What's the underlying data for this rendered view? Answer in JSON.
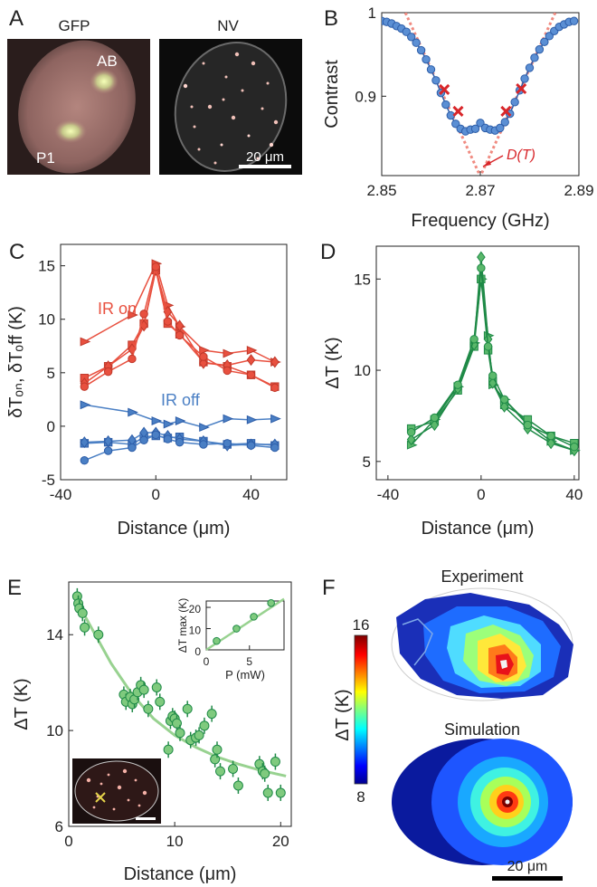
{
  "panels": {
    "A": {
      "letter": "A",
      "left_title": "GFP",
      "right_title": "NV",
      "label_ab": "AB",
      "label_p1": "P1",
      "scalebar_label": "20 μm"
    },
    "B": {
      "letter": "B",
      "annotation": "D(T)"
    },
    "C": {
      "letter": "C",
      "label_on": "IR on",
      "label_off": "IR off"
    },
    "D": {
      "letter": "D"
    },
    "E": {
      "letter": "E"
    },
    "F": {
      "letter": "F",
      "title_exp": "Experiment",
      "title_sim": "Simulation",
      "colorbar_label": "ΔT (K)",
      "colorbar_max": "16",
      "colorbar_min": "8",
      "scalebar_label": "20 μm"
    }
  },
  "colors": {
    "blue": "#4a7fc4",
    "red": "#e8503f",
    "green": "#1f8a47",
    "lightgreen": "#5bb86b",
    "fit_red": "#f08a80",
    "marker_red": "#d8262a"
  },
  "chart_data": [
    {
      "id": "B",
      "type": "line",
      "xlabel": "Frequency (GHz)",
      "ylabel": "Contrast",
      "xlim": [
        2.85,
        2.89
      ],
      "ylim": [
        0.805,
        1.0
      ],
      "xticks": [
        2.85,
        2.87,
        2.89
      ],
      "xticklabels": [
        "2.85",
        "2.87",
        "2.89"
      ],
      "yticks": [
        0.9,
        1.0
      ],
      "yticklabels": [
        "0.9",
        "1"
      ],
      "series": [
        {
          "x": [
            2.85,
            2.851,
            2.852,
            2.853,
            2.854,
            2.855,
            2.856,
            2.857,
            2.858,
            2.859,
            2.86,
            2.861,
            2.862,
            2.863,
            2.864,
            2.865,
            2.866,
            2.867,
            2.868,
            2.869,
            2.87,
            2.871,
            2.872,
            2.873,
            2.874,
            2.875,
            2.876,
            2.877,
            2.878,
            2.879,
            2.88,
            2.881,
            2.882,
            2.883,
            2.884,
            2.885,
            2.886,
            2.887,
            2.888,
            2.889
          ],
          "y": [
            0.99,
            0.989,
            0.987,
            0.984,
            0.981,
            0.977,
            0.971,
            0.964,
            0.955,
            0.944,
            0.932,
            0.919,
            0.904,
            0.89,
            0.877,
            0.867,
            0.861,
            0.858,
            0.86,
            0.861,
            0.868,
            0.862,
            0.86,
            0.859,
            0.862,
            0.869,
            0.879,
            0.893,
            0.907,
            0.921,
            0.934,
            0.946,
            0.956,
            0.965,
            0.972,
            0.978,
            0.983,
            0.986,
            0.989,
            0.99
          ]
        }
      ],
      "fit_lines": [
        {
          "x": [
            2.8548,
            2.8697
          ],
          "y": [
            1.0,
            0.808
          ]
        },
        {
          "x": [
            2.8703,
            2.8852
          ],
          "y": [
            0.808,
            1.0
          ]
        }
      ],
      "crosses": {
        "x": [
          2.8627,
          2.8655,
          2.8752,
          2.8783
        ],
        "y": [
          0.908,
          0.882,
          0.882,
          0.909
        ]
      }
    },
    {
      "id": "C",
      "type": "line",
      "xlabel": "Distance (μm)",
      "ylabel": "δTₒₙ, δTₒff (K)",
      "xlim": [
        -40,
        55
      ],
      "ylim": [
        -5,
        17
      ],
      "xticks": [
        -40,
        0,
        40
      ],
      "xticklabels": [
        "-40",
        "0",
        "40"
      ],
      "yticks": [
        -5,
        0,
        5,
        10,
        15
      ],
      "yticklabels": [
        "-5",
        "0",
        "5",
        "10",
        "15"
      ],
      "series": [
        {
          "name": "IR on",
          "marker": "triangle",
          "x": [
            -30,
            -10,
            0,
            5,
            10,
            20,
            30,
            40,
            50
          ],
          "y": [
            7.9,
            10.4,
            15.2,
            11.3,
            9.3,
            7.1,
            6.8,
            7.1,
            6.0
          ]
        },
        {
          "name": "IR on",
          "marker": "square",
          "x": [
            -30,
            -20,
            -10,
            -5,
            0,
            5,
            10,
            20,
            30,
            40,
            50
          ],
          "y": [
            4.5,
            5.6,
            7.6,
            9.6,
            14.6,
            9.6,
            8.6,
            6.0,
            5.6,
            4.8,
            3.7
          ]
        },
        {
          "name": "IR on",
          "marker": "diamond",
          "x": [
            -30,
            -20,
            -10,
            -5,
            0,
            5,
            10,
            20,
            30,
            40,
            50
          ],
          "y": [
            4.0,
            5.6,
            7.2,
            9.4,
            14.6,
            10.7,
            9.4,
            5.9,
            5.7,
            6.2,
            6.0
          ]
        },
        {
          "name": "IR on",
          "marker": "circle",
          "x": [
            -30,
            -20,
            -10,
            -5,
            0,
            5,
            10,
            20,
            30,
            40,
            50
          ],
          "y": [
            3.7,
            5.1,
            6.3,
            10.5,
            14.9,
            9.8,
            8.5,
            6.5,
            5.2,
            4.8,
            3.6
          ]
        },
        {
          "name": "IR off",
          "marker": "triangle",
          "x": [
            -30,
            -10,
            0,
            5,
            10,
            20,
            30,
            40,
            50
          ],
          "y": [
            2.0,
            1.3,
            0.5,
            0.2,
            0.5,
            -0.1,
            0.7,
            0.6,
            0.7
          ]
        },
        {
          "name": "IR off",
          "marker": "square",
          "x": [
            -30,
            -20,
            -10,
            -5,
            0,
            5,
            10,
            20,
            30,
            40,
            50
          ],
          "y": [
            -1.6,
            -1.5,
            -1.7,
            -1.0,
            -0.9,
            -1.1,
            -1.0,
            -1.4,
            -1.7,
            -1.6,
            -1.8
          ]
        },
        {
          "name": "IR off",
          "marker": "diamond",
          "x": [
            -30,
            -20,
            -10,
            -5,
            0,
            5,
            10,
            20,
            30,
            40,
            50
          ],
          "y": [
            -1.5,
            -1.4,
            -1.3,
            -0.6,
            -0.6,
            -0.9,
            -1.2,
            -1.4,
            -1.8,
            -1.7,
            -1.7
          ]
        },
        {
          "name": "IR off",
          "marker": "circle",
          "x": [
            -30,
            -20,
            -10,
            -5,
            0,
            5,
            10,
            20,
            30,
            40,
            50
          ],
          "y": [
            -3.2,
            -2.3,
            -2.0,
            -1.3,
            -0.8,
            -1.2,
            -1.5,
            -1.7,
            -1.6,
            -1.8,
            -2.0
          ]
        }
      ]
    },
    {
      "id": "D",
      "type": "line",
      "xlabel": "Distance (μm)",
      "ylabel": "ΔT (K)",
      "xlim": [
        -45,
        42
      ],
      "ylim": [
        4,
        16.8
      ],
      "xticks": [
        -40,
        0,
        40
      ],
      "xticklabels": [
        "-40",
        "0",
        "40"
      ],
      "yticks": [
        5,
        10,
        15
      ],
      "yticklabels": [
        "5",
        "10",
        "15"
      ],
      "series": [
        {
          "marker": "triangle",
          "x": [
            -30,
            -20,
            -10,
            -3,
            0,
            3,
            5,
            10,
            20,
            30,
            40
          ],
          "y": [
            5.9,
            7.3,
            9.1,
            11.5,
            15.0,
            11.9,
            9.2,
            8.4,
            7.1,
            6.1,
            5.6
          ]
        },
        {
          "marker": "square",
          "x": [
            -30,
            -20,
            -10,
            -3,
            0,
            3,
            5,
            10,
            20,
            30,
            40
          ],
          "y": [
            6.8,
            7.2,
            8.9,
            11.3,
            15.0,
            11.1,
            9.4,
            8.1,
            7.3,
            6.4,
            6.0
          ]
        },
        {
          "marker": "diamond",
          "x": [
            -30,
            -20,
            -10,
            -3,
            0,
            3,
            5,
            10,
            20,
            30,
            40
          ],
          "y": [
            6.2,
            7.0,
            9.0,
            11.4,
            16.2,
            11.7,
            9.3,
            8.0,
            6.8,
            6.0,
            5.6
          ]
        },
        {
          "marker": "circle",
          "x": [
            -30,
            -20,
            -10,
            -3,
            0,
            3,
            5,
            10,
            20,
            30,
            40
          ],
          "y": [
            6.6,
            7.4,
            9.2,
            11.7,
            15.6,
            11.3,
            9.7,
            8.4,
            7.0,
            6.4,
            5.8
          ]
        }
      ]
    },
    {
      "id": "E",
      "type": "scatter",
      "xlabel": "Distance (μm)",
      "ylabel": "ΔT (K)",
      "xlim": [
        0,
        21
      ],
      "ylim": [
        6,
        16.2
      ],
      "xticks": [
        0,
        10,
        20
      ],
      "xticklabels": [
        "0",
        "10",
        "20"
      ],
      "yticks": [
        6,
        10,
        14
      ],
      "yticklabels": [
        "6",
        "10",
        "14"
      ],
      "x": [
        0.8,
        0.9,
        1.0,
        1.3,
        1.5,
        2.8,
        5.2,
        5.4,
        5.8,
        6.0,
        6.2,
        6.5,
        6.8,
        7.1,
        7.5,
        8.3,
        8.6,
        9.4,
        9.6,
        9.8,
        10.0,
        10.2,
        10.5,
        11.2,
        11.5,
        12.0,
        12.3,
        12.8,
        13.5,
        13.8,
        14.0,
        14.3,
        15.5,
        16.0,
        18.0,
        18.3,
        18.5,
        18.8,
        19.5,
        20.0
      ],
      "y": [
        15.6,
        15.3,
        15.1,
        14.9,
        14.3,
        14.0,
        11.5,
        11.2,
        11.4,
        11.1,
        11.3,
        11.6,
        11.9,
        11.7,
        10.9,
        11.8,
        11.2,
        9.2,
        10.4,
        10.6,
        10.5,
        10.3,
        9.9,
        10.9,
        9.6,
        9.7,
        9.8,
        10.2,
        10.7,
        8.8,
        9.2,
        8.3,
        8.4,
        7.7,
        8.6,
        8.3,
        8.2,
        7.4,
        8.7,
        7.4
      ],
      "fit": {
        "x": [
          0.5,
          2,
          4,
          6,
          8,
          10,
          12,
          14,
          16,
          18,
          20.5
        ],
        "y": [
          15.6,
          14.4,
          12.8,
          11.5,
          10.5,
          9.8,
          9.3,
          8.9,
          8.6,
          8.35,
          8.1
        ]
      }
    },
    {
      "id": "E-inset",
      "type": "scatter",
      "xlabel": "P (mW)",
      "ylabel": "ΔT max (K)",
      "xlim": [
        0,
        9
      ],
      "ylim": [
        0,
        23
      ],
      "xticks": [
        0,
        5
      ],
      "xticklabels": [
        "0",
        "5"
      ],
      "yticks": [
        0,
        10,
        20
      ],
      "yticklabels": [
        "0",
        "10",
        "20"
      ],
      "x": [
        1.2,
        3.5,
        5.5,
        7.5
      ],
      "y": [
        4.2,
        10.0,
        15.6,
        22.0
      ],
      "fit": {
        "x": [
          0,
          9
        ],
        "y": [
          0,
          24
        ]
      }
    }
  ]
}
